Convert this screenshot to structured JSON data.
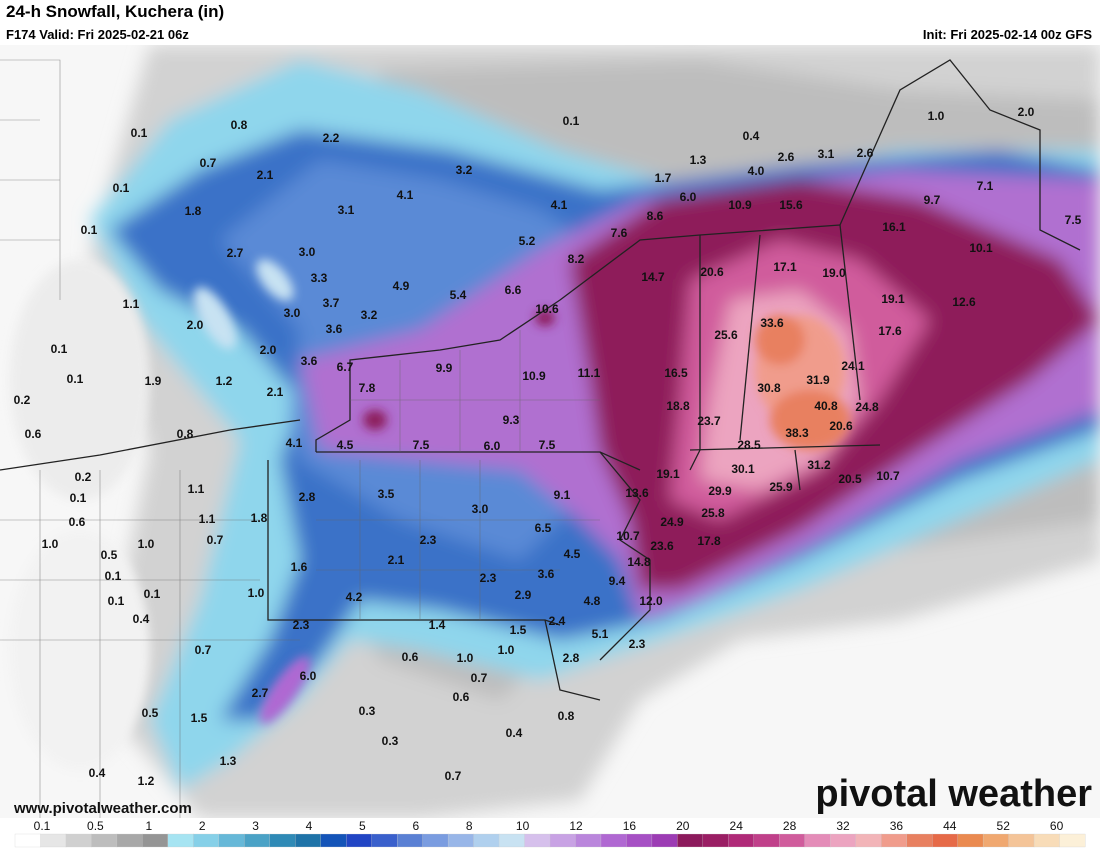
{
  "header": {
    "title": "24-h Snowfall, Kuchera (in)",
    "valid": "F174 Valid: Fri 2025-02-21 06z",
    "init": "Init: Fri 2025-02-14 00z GFS"
  },
  "map": {
    "labels": [
      "0.1",
      "0.8",
      "2.2",
      "0.1",
      "0.4",
      "1.0",
      "2.0",
      "0.7",
      "2.1",
      "3.2",
      "1.3",
      "2.6",
      "3.1",
      "2.6",
      "0.1",
      "4.1",
      "1.7",
      "4.0",
      "7.1",
      "1.8",
      "3.1",
      "4.1",
      "6.0",
      "10.9",
      "15.6",
      "9.7",
      "0.1",
      "8.6",
      "7.6",
      "16.1",
      "7.5",
      "2.7",
      "3.0",
      "5.2",
      "8.2",
      "10.1",
      "3.3",
      "17.1",
      "19.0",
      "20.6",
      "14.7",
      "4.9",
      "5.4",
      "6.6",
      "19.1",
      "12.6",
      "1.1",
      "3.7",
      "3.0",
      "3.2",
      "10.6",
      "2.0",
      "33.6",
      "3.6",
      "25.6",
      "17.6",
      "0.1",
      "2.0",
      "3.6",
      "6.7",
      "9.9",
      "24.1",
      "31.9",
      "0.1",
      "1.9",
      "1.2",
      "10.9",
      "11.1",
      "16.5",
      "30.8",
      "7.8",
      "2.1",
      "0.2",
      "18.8",
      "40.8",
      "24.8",
      "9.3",
      "23.7",
      "38.3",
      "20.6",
      "0.6",
      "0.8",
      "4.1",
      "4.5",
      "7.5",
      "6.0",
      "7.5",
      "28.5",
      "19.1",
      "30.1",
      "31.2",
      "20.5",
      "10.7",
      "0.2",
      "1.1",
      "2.8",
      "3.5",
      "9.1",
      "13.6",
      "29.9",
      "25.9",
      "0.1",
      "3.0",
      "0.6",
      "1.1",
      "1.8",
      "6.5",
      "24.9",
      "25.8",
      "1.0",
      "0.7",
      "1.0",
      "2.3",
      "10.7",
      "23.6",
      "17.8",
      "0.5",
      "2.1",
      "4.5",
      "14.8",
      "0.1",
      "1.6",
      "2.3",
      "3.6",
      "9.4",
      "0.1",
      "1.0",
      "4.2",
      "2.9",
      "4.8",
      "12.0",
      "0.1",
      "0.4",
      "2.3",
      "1.4",
      "1.5",
      "2.4",
      "5.1",
      "1.0",
      "2.3",
      "0.7",
      "0.6",
      "1.0",
      "2.8",
      "6.0",
      "0.7",
      "2.7",
      "0.6",
      "0.5",
      "0.3",
      "0.8",
      "1.5",
      "0.4",
      "0.3",
      "1.3",
      "0.4",
      "0.7",
      "1.2"
    ]
  },
  "legend": {
    "labels": [
      "0.1",
      "0.5",
      "1",
      "2",
      "3",
      "4",
      "5",
      "6",
      "8",
      "10",
      "12",
      "16",
      "20",
      "24",
      "28",
      "32",
      "36",
      "44",
      "52",
      "60"
    ],
    "colors": [
      "#ffffff",
      "#e6e6e6",
      "#d0d0d0",
      "#bdbdbd",
      "#a8a8a8",
      "#959595",
      "#a6e4f2",
      "#86d0e8",
      "#66b8d8",
      "#4aa2c6",
      "#2f8ab6",
      "#1e73a8",
      "#1454b8",
      "#2145c4",
      "#3a60cc",
      "#5a80d4",
      "#7a9ce0",
      "#98b6e8",
      "#b0d0ee",
      "#c8e2f2",
      "#d6c0ec",
      "#c8a2e4",
      "#ba86dc",
      "#b068d2",
      "#a650c4",
      "#9c3cb4",
      "#8c1a5c",
      "#9a1e64",
      "#b02a78",
      "#c0408a",
      "#d05c9c",
      "#e48cb8",
      "#eca4c0",
      "#f2b4b8",
      "#f09c8c",
      "#e88060",
      "#e66a48",
      "#ea8a50",
      "#f0a870",
      "#f4c498",
      "#f8dcb8",
      "#fcf0d8"
    ]
  },
  "footer": {
    "site": "www.pivotalweather.com",
    "logo": "pivotal weather"
  }
}
